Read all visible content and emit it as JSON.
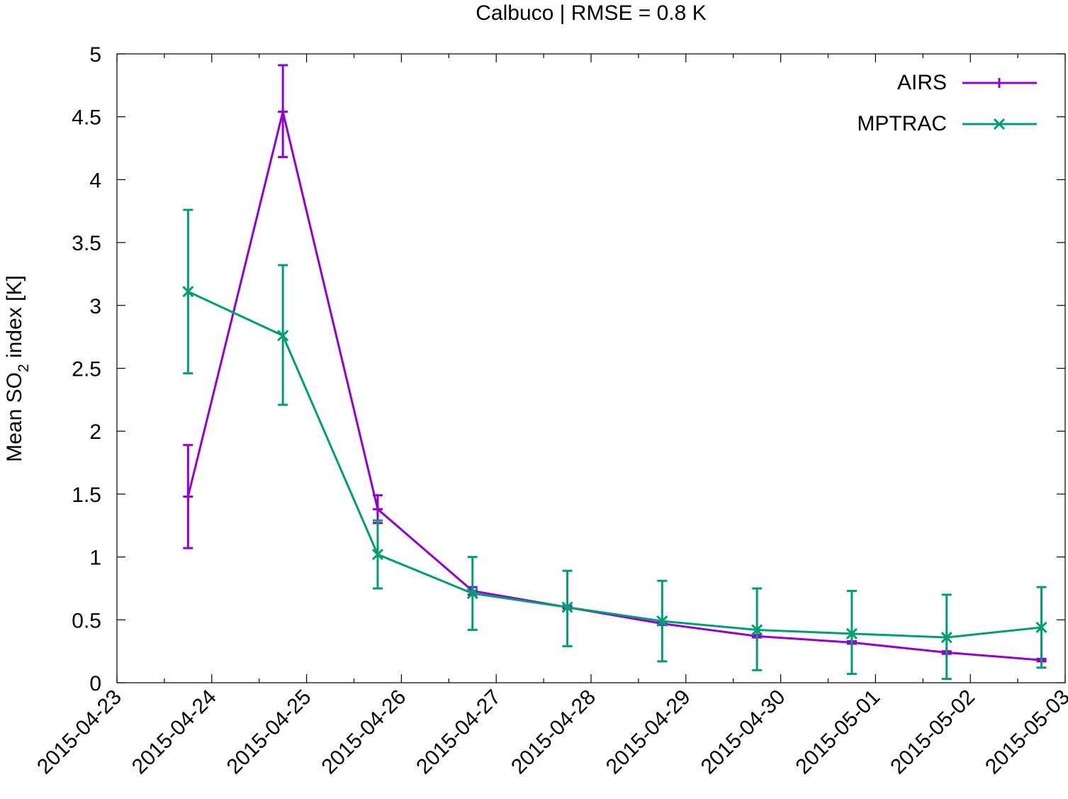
{
  "chart_data": {
    "type": "line",
    "title": "Calbuco | RMSE = 0.8 K",
    "ylabel": {
      "main": "Mean SO",
      "sub": "2",
      "rest": " index [K]"
    },
    "xlabel": "",
    "x_range": [
      "2015-04-23",
      "2015-05-03"
    ],
    "x_tick_labels": [
      "2015-04-23",
      "2015-04-24",
      "2015-04-25",
      "2015-04-26",
      "2015-04-27",
      "2015-04-28",
      "2015-04-29",
      "2015-04-30",
      "2015-05-01",
      "2015-05-02",
      "2015-05-03"
    ],
    "ylim": [
      0,
      5
    ],
    "y_ticks": [
      0,
      0.5,
      1,
      1.5,
      2,
      2.5,
      3,
      3.5,
      4,
      4.5,
      5
    ],
    "y_tick_labels": [
      "0",
      "0.5",
      "1",
      "1.5",
      "2",
      "2.5",
      "3",
      "3.5",
      "4",
      "4.5",
      "5"
    ],
    "x": [
      "2015-04-23 18:00",
      "2015-04-24 18:00",
      "2015-04-25 18:00",
      "2015-04-26 18:00",
      "2015-04-27 18:00",
      "2015-04-28 18:00",
      "2015-04-29 18:00",
      "2015-04-30 18:00",
      "2015-05-01 18:00",
      "2015-05-02 18:00"
    ],
    "grid": false,
    "legend_position": "top-right",
    "series": [
      {
        "name": "AIRS",
        "color": "#9400d3",
        "marker": "plus",
        "values": [
          1.48,
          4.54,
          1.38,
          0.73,
          0.6,
          0.47,
          0.37,
          0.32,
          0.24,
          0.18
        ],
        "err_low": [
          1.07,
          4.18,
          1.27,
          0.7,
          0.59,
          0.46,
          0.36,
          0.31,
          0.23,
          0.17
        ],
        "err_high": [
          1.89,
          4.91,
          1.49,
          0.76,
          0.61,
          0.48,
          0.38,
          0.33,
          0.25,
          0.19
        ]
      },
      {
        "name": "MPTRAC",
        "color": "#009e73",
        "marker": "cross",
        "values": [
          3.11,
          2.76,
          1.02,
          0.71,
          0.6,
          0.49,
          0.42,
          0.39,
          0.36,
          0.44
        ],
        "err_low": [
          2.46,
          2.21,
          0.75,
          0.42,
          0.29,
          0.17,
          0.1,
          0.07,
          0.03,
          0.12
        ],
        "err_high": [
          3.76,
          3.32,
          1.29,
          1.0,
          0.89,
          0.81,
          0.75,
          0.73,
          0.7,
          0.76
        ]
      }
    ]
  }
}
